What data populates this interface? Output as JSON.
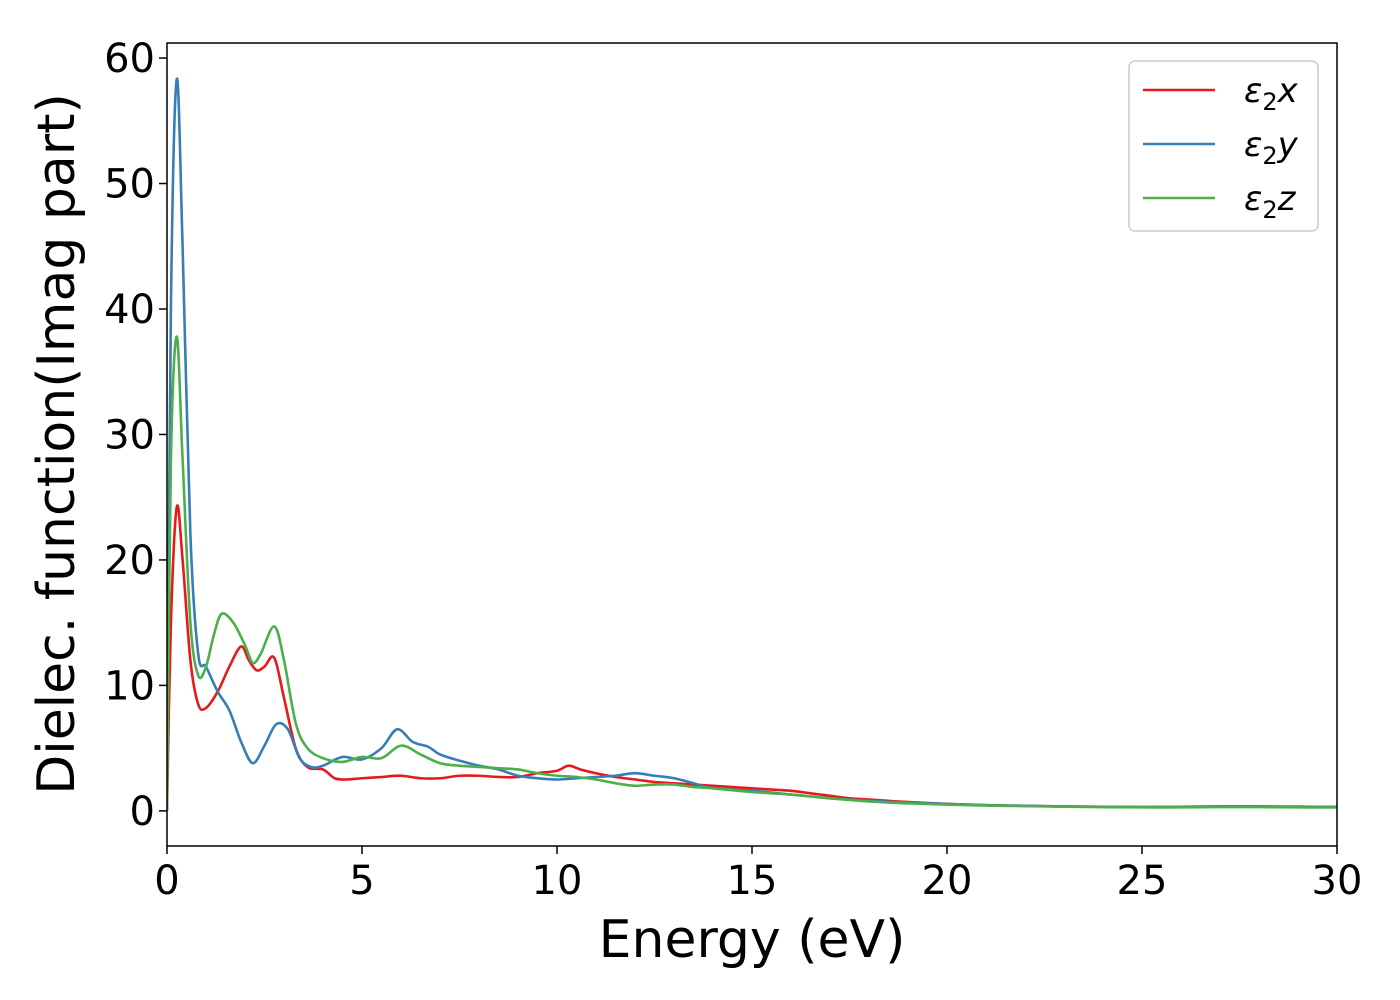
{
  "chart_data": {
    "type": "line",
    "xlabel": "Energy (eV)",
    "ylabel": "Dielec. function(Imag part)",
    "xlim": [
      0,
      30
    ],
    "ylim": [
      -2.8,
      61.2
    ],
    "xticks": [
      0,
      5,
      10,
      15,
      20,
      25,
      30
    ],
    "yticks": [
      0,
      10,
      20,
      30,
      40,
      50,
      60
    ],
    "grid": false,
    "legend_position": "top-right",
    "colors": {
      "x": "#e41a1c",
      "y": "#377eb8",
      "z": "#4daf4a"
    },
    "legend": [
      {
        "base": "ε",
        "sub": "2",
        "comp": "x",
        "key": "x"
      },
      {
        "base": "ε",
        "sub": "2",
        "comp": "y",
        "key": "y"
      },
      {
        "base": "ε",
        "sub": "2",
        "comp": "z",
        "key": "z"
      }
    ],
    "series": [
      {
        "key": "x",
        "x": [
          0,
          0.1,
          0.25,
          0.4,
          0.6,
          0.8,
          1.0,
          1.3,
          1.6,
          1.9,
          2.1,
          2.3,
          2.5,
          2.75,
          3.0,
          3.3,
          3.6,
          4.0,
          4.3,
          4.6,
          5.0,
          5.5,
          6.0,
          6.5,
          7.0,
          7.5,
          8.0,
          8.5,
          9.0,
          9.5,
          10.0,
          10.3,
          10.6,
          11.0,
          11.5,
          12.0,
          12.5,
          13.0,
          13.5,
          14.0,
          14.5,
          15.0,
          15.5,
          16.0,
          16.5,
          17.0,
          17.5,
          18.0,
          19.0,
          20.0,
          21.0,
          22.0,
          23.0,
          24.0,
          25.0,
          26.0,
          27.0,
          28.0,
          29.0,
          30.0
        ],
        "y": [
          0,
          15,
          24.2,
          20,
          12,
          8.5,
          8.2,
          9.5,
          11.5,
          13.1,
          12,
          11.2,
          11.5,
          12.2,
          9,
          5,
          3.5,
          3.3,
          2.6,
          2.5,
          2.6,
          2.7,
          2.8,
          2.6,
          2.6,
          2.8,
          2.8,
          2.7,
          2.7,
          3.0,
          3.2,
          3.6,
          3.3,
          3.0,
          2.7,
          2.5,
          2.3,
          2.2,
          2.1,
          2.0,
          1.9,
          1.8,
          1.7,
          1.6,
          1.4,
          1.2,
          1.0,
          0.9,
          0.7,
          0.55,
          0.45,
          0.4,
          0.35,
          0.32,
          0.3,
          0.32,
          0.35,
          0.35,
          0.33,
          0.32
        ]
      },
      {
        "key": "y",
        "x": [
          0,
          0.1,
          0.25,
          0.4,
          0.6,
          0.8,
          1.0,
          1.3,
          1.6,
          1.9,
          2.2,
          2.5,
          2.8,
          3.1,
          3.4,
          3.7,
          4.0,
          4.5,
          5.0,
          5.5,
          5.9,
          6.3,
          6.7,
          7.0,
          7.5,
          8.0,
          8.5,
          9.0,
          9.5,
          10.0,
          10.5,
          11.0,
          11.5,
          12.0,
          12.5,
          13.0,
          13.5,
          14.0,
          15.0,
          16.0,
          17.0,
          18.0,
          19.0,
          20.0,
          21.0,
          22.0,
          23.0,
          24.0,
          25.0,
          26.0,
          27.0,
          28.0,
          29.0,
          30.0
        ],
        "y": [
          0,
          40,
          58.3,
          45,
          22,
          12.5,
          11.5,
          9.5,
          8,
          5.5,
          3.8,
          5.2,
          6.9,
          6.5,
          4.2,
          3.5,
          3.6,
          4.3,
          4.1,
          5,
          6.5,
          5.5,
          5.1,
          4.5,
          4,
          3.6,
          3.3,
          2.8,
          2.6,
          2.5,
          2.6,
          2.7,
          2.8,
          3.0,
          2.8,
          2.6,
          2.2,
          1.8,
          1.6,
          1.3,
          1.0,
          0.8,
          0.65,
          0.55,
          0.45,
          0.4,
          0.35,
          0.32,
          0.3,
          0.32,
          0.35,
          0.35,
          0.33,
          0.32
        ]
      },
      {
        "key": "z",
        "x": [
          0,
          0.1,
          0.25,
          0.4,
          0.6,
          0.8,
          1.0,
          1.2,
          1.4,
          1.7,
          2.0,
          2.2,
          2.4,
          2.75,
          3.0,
          3.3,
          3.6,
          4.0,
          4.5,
          5.0,
          5.5,
          6.0,
          6.5,
          7.0,
          7.5,
          8.0,
          8.5,
          9.0,
          9.5,
          10.0,
          10.5,
          11.0,
          11.5,
          12.0,
          12.5,
          13.0,
          13.5,
          14.0,
          15.0,
          16.0,
          17.0,
          18.0,
          19.0,
          20.0,
          21.0,
          22.0,
          23.0,
          24.0,
          25.0,
          26.0,
          27.0,
          28.0,
          29.0,
          30.0
        ],
        "y": [
          0,
          28,
          37.8,
          28,
          15,
          10.8,
          11.5,
          14,
          15.7,
          15,
          13.2,
          11.8,
          12.5,
          14.7,
          12,
          7,
          5,
          4.2,
          3.9,
          4.3,
          4.2,
          5.2,
          4.5,
          3.8,
          3.6,
          3.5,
          3.4,
          3.3,
          3.0,
          2.8,
          2.7,
          2.5,
          2.2,
          2.0,
          2.1,
          2.1,
          1.9,
          1.8,
          1.5,
          1.3,
          1.0,
          0.75,
          0.6,
          0.5,
          0.42,
          0.38,
          0.33,
          0.3,
          0.28,
          0.28,
          0.3,
          0.3,
          0.28,
          0.27
        ]
      }
    ]
  }
}
